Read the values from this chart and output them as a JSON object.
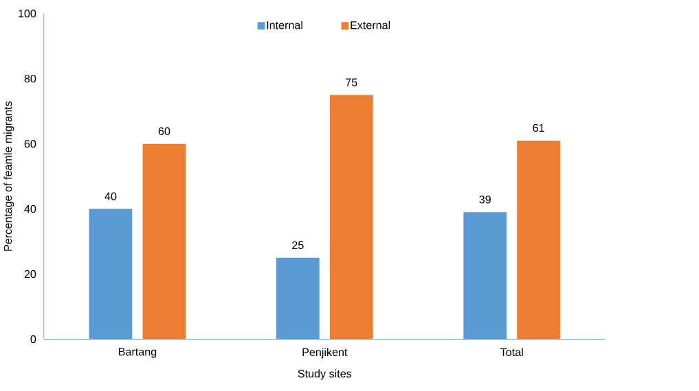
{
  "chart_data": {
    "type": "bar",
    "xlabel": "Study sites",
    "ylabel": "Percentage of feamle migrants",
    "categories": [
      "Bartang",
      "Penjikent",
      "Total"
    ],
    "series": [
      {
        "name": "Internal",
        "color": "#5b9bd5",
        "values": [
          40,
          25,
          39
        ]
      },
      {
        "name": "External",
        "color": "#ed7d31",
        "values": [
          60,
          75,
          61
        ]
      }
    ],
    "ylim": [
      0,
      100
    ],
    "yticks": [
      0,
      20,
      40,
      60,
      80,
      100
    ],
    "data_labels": true,
    "legend": "top",
    "grid": false
  }
}
